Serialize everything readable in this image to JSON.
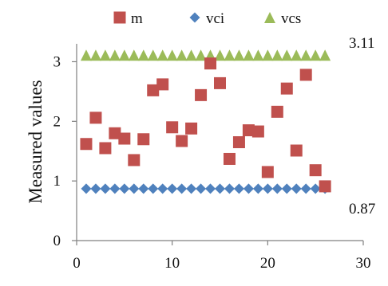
{
  "chart_data": {
    "type": "scatter",
    "ylabel": "Measured values",
    "xlim": [
      0,
      30
    ],
    "ylim": [
      0,
      3
    ],
    "x_ticks": [
      "0",
      "10",
      "20",
      "30"
    ],
    "y_ticks": [
      "0",
      "1",
      "2",
      "3"
    ],
    "grid": false,
    "legend_position": "top",
    "series": [
      {
        "name": "m",
        "marker": "square",
        "color": "#c0504d",
        "x": [
          1,
          2,
          3,
          4,
          5,
          6,
          7,
          8,
          9,
          10,
          11,
          12,
          13,
          14,
          15,
          16,
          17,
          18,
          19,
          20,
          21,
          22,
          23,
          24,
          25,
          26
        ],
        "y": [
          1.62,
          2.06,
          1.55,
          1.8,
          1.71,
          1.35,
          1.7,
          2.52,
          2.62,
          1.9,
          1.67,
          1.88,
          2.44,
          2.97,
          2.64,
          1.37,
          1.65,
          1.85,
          1.83,
          1.15,
          2.16,
          2.55,
          1.51,
          2.78,
          1.18,
          0.91
        ]
      },
      {
        "name": "vci",
        "marker": "diamond",
        "color": "#4f81bd",
        "x": [
          1,
          2,
          3,
          4,
          5,
          6,
          7,
          8,
          9,
          10,
          11,
          12,
          13,
          14,
          15,
          16,
          17,
          18,
          19,
          20,
          21,
          22,
          23,
          24,
          25,
          26
        ],
        "y": [
          0.87,
          0.87,
          0.87,
          0.87,
          0.87,
          0.87,
          0.87,
          0.87,
          0.87,
          0.87,
          0.87,
          0.87,
          0.87,
          0.87,
          0.87,
          0.87,
          0.87,
          0.87,
          0.87,
          0.87,
          0.87,
          0.87,
          0.87,
          0.87,
          0.87,
          0.87
        ]
      },
      {
        "name": "vcs",
        "marker": "triangle",
        "color": "#9bbb59",
        "x": [
          1,
          2,
          3,
          4,
          5,
          6,
          7,
          8,
          9,
          10,
          11,
          12,
          13,
          14,
          15,
          16,
          17,
          18,
          19,
          20,
          21,
          22,
          23,
          24,
          25,
          26
        ],
        "y": [
          3.11,
          3.11,
          3.11,
          3.11,
          3.11,
          3.11,
          3.11,
          3.11,
          3.11,
          3.11,
          3.11,
          3.11,
          3.11,
          3.11,
          3.11,
          3.11,
          3.11,
          3.11,
          3.11,
          3.11,
          3.11,
          3.11,
          3.11,
          3.11,
          3.11,
          3.11
        ]
      }
    ],
    "annotations": [
      {
        "text": "3.11",
        "y": 3.11
      },
      {
        "text": "0.87",
        "y": 0.87
      }
    ],
    "axis_color": "#808080",
    "text_color": "#111111"
  }
}
